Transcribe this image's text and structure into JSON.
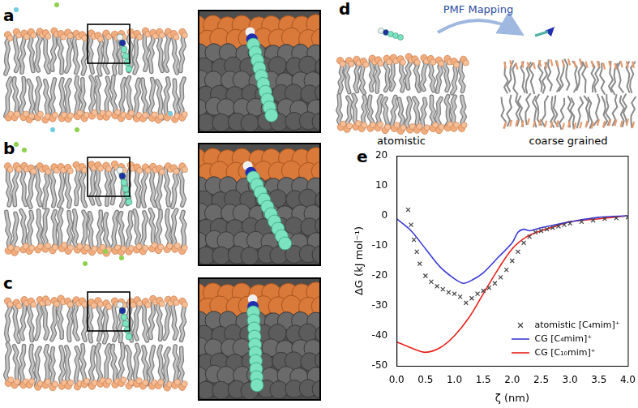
{
  "panels": [
    {
      "label": "a"
    },
    {
      "label": "b"
    },
    {
      "label": "c"
    },
    {
      "label": "d",
      "arrow_text": "PMF Mapping",
      "captions": [
        "atomistic",
        "coarse grained"
      ]
    }
  ],
  "chart_data": {
    "label": "e",
    "type": "line",
    "x_label": "ζ (nm)",
    "y_label": "ΔG (kJ mol⁻¹)",
    "xlim": [
      0,
      4
    ],
    "xticks": [
      {
        "value": 0,
        "label": "0.0"
      },
      {
        "value": 0.5,
        "label": "0.5"
      },
      {
        "value": 1,
        "label": "1.0"
      },
      {
        "value": 1.5,
        "label": "1.5"
      },
      {
        "value": 2,
        "label": "2.0"
      },
      {
        "value": 2.5,
        "label": "2.5"
      },
      {
        "value": 3,
        "label": "3.0"
      },
      {
        "value": 3.5,
        "label": "3.5"
      },
      {
        "value": 4,
        "label": "4.0"
      }
    ],
    "ylim": [
      -50,
      20
    ],
    "yticks": [
      -50,
      -40,
      -30,
      -20,
      -10,
      0,
      10,
      20
    ],
    "grid": false,
    "legend": "lower right",
    "series": [
      {
        "name": "atomistic [C₄mim]⁺",
        "type": "scatter",
        "marker": "x",
        "color": "#444444",
        "x": [
          0.2,
          0.25,
          0.3,
          0.35,
          0.4,
          0.5,
          0.6,
          0.7,
          0.8,
          0.9,
          1.0,
          1.1,
          1.2,
          1.3,
          1.4,
          1.5,
          1.6,
          1.7,
          1.8,
          1.9,
          2.0,
          2.1,
          2.2,
          2.3,
          2.4,
          2.5,
          2.6,
          2.7,
          2.8,
          2.9,
          3.0,
          3.2,
          3.4,
          3.6,
          3.8,
          4.0
        ],
        "values": [
          2,
          -3,
          -8,
          -12,
          -16,
          -20,
          -22,
          -23.5,
          -24.5,
          -25.5,
          -26,
          -27,
          -29,
          -27.5,
          -26,
          -25,
          -24,
          -22.5,
          -20.5,
          -18,
          -15,
          -12,
          -9,
          -7,
          -5.5,
          -5,
          -4.5,
          -4,
          -3.5,
          -3,
          -2.5,
          -2,
          -1.5,
          -1,
          -0.8,
          -0.5
        ]
      },
      {
        "name": "CG [C₄mim]⁺",
        "type": "line",
        "color": "#3b3bd6",
        "x": [
          0,
          0.25,
          0.5,
          0.75,
          1.0,
          1.15,
          1.3,
          1.5,
          1.75,
          2.0,
          2.1,
          2.2,
          2.3,
          2.5,
          2.75,
          3.0,
          3.5,
          4.0
        ],
        "values": [
          -1,
          -5,
          -11,
          -17,
          -21,
          -22.5,
          -21.5,
          -19,
          -14,
          -9,
          -5.5,
          -4.5,
          -5,
          -4,
          -3,
          -2,
          -0.5,
          0
        ]
      },
      {
        "name": "CG [C₁₀mim]⁺",
        "type": "line",
        "color": "#e8201c",
        "x": [
          0,
          0.25,
          0.5,
          0.75,
          1.0,
          1.25,
          1.5,
          1.75,
          2.0,
          2.25,
          2.5,
          2.75,
          3.0,
          3.5,
          4.0
        ],
        "values": [
          -42,
          -44,
          -45.5,
          -44,
          -40,
          -34,
          -26,
          -18,
          -11,
          -7,
          -5,
          -3.5,
          -2,
          -1,
          0
        ]
      }
    ]
  }
}
